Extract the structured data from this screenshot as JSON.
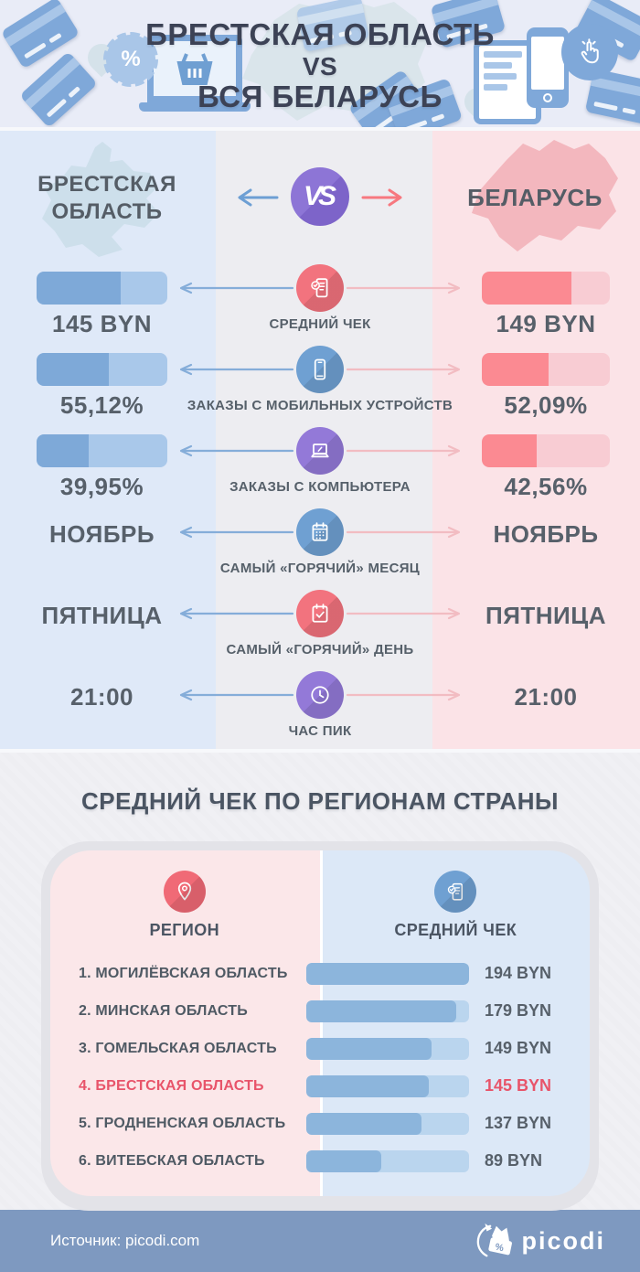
{
  "header": {
    "title_lines": [
      "БРЕСТСКАЯ ОБЛАСТЬ",
      "VS",
      "ВСЯ БЕЛАРУСЬ"
    ]
  },
  "compare": {
    "left_region_label": "БРЕСТСКАЯ ОБЛАСТЬ",
    "right_region_label": "БЕЛАРУСЬ",
    "vs_label": "VS",
    "rows": [
      {
        "label": "СРЕДНИЙ ЧЕК",
        "icon": "receipt-check-icon",
        "accent": "#f2737e",
        "left_value": "145 BYN",
        "left_fill_pct": 64,
        "right_value": "149 BYN",
        "right_fill_pct": 70
      },
      {
        "label": "ЗАКАЗЫ С МОБИЛЬНЫХ УСТРОЙСТВ",
        "icon": "smartphone-icon",
        "accent": "#6fa0d2",
        "left_value": "55,12%",
        "left_fill_pct": 55,
        "right_value": "52,09%",
        "right_fill_pct": 52
      },
      {
        "label": "ЗАКАЗЫ С КОМПЬЮТЕРА",
        "icon": "laptop-icon",
        "accent": "#9379d8",
        "left_value": "39,95%",
        "left_fill_pct": 40,
        "right_value": "42,56%",
        "right_fill_pct": 43
      },
      {
        "label": "САМЫЙ «ГОРЯЧИЙ» МЕСЯЦ",
        "icon": "calendar-icon",
        "accent": "#6fa0d2",
        "left_value": "НОЯБРЬ",
        "right_value": "НОЯБРЬ"
      },
      {
        "label": "САМЫЙ «ГОРЯЧИЙ» ДЕНЬ",
        "icon": "calendar-check-icon",
        "accent": "#f2737e",
        "left_value": "ПЯТНИЦА",
        "right_value": "ПЯТНИЦА"
      },
      {
        "label": "ЧАС ПИК",
        "icon": "clock-icon",
        "accent": "#9379d8",
        "left_value": "21:00",
        "right_value": "21:00"
      }
    ]
  },
  "regions_section": {
    "title": "СРЕДНИЙ ЧЕК ПО РЕГИОНАМ СТРАНЫ",
    "col_region_label": "РЕГИОН",
    "col_value_label": "СРЕДНИЙ ЧЕК",
    "rows": [
      {
        "name": "1. МОГИЛЁВСКАЯ ОБЛАСТЬ",
        "value": "194 BYN",
        "fill_pct": 100,
        "highlight": false
      },
      {
        "name": "2. МИНСКАЯ ОБЛАСТЬ",
        "value": "179 BYN",
        "fill_pct": 92,
        "highlight": false
      },
      {
        "name": "3. ГОМЕЛЬСКАЯ ОБЛАСТЬ",
        "value": "149 BYN",
        "fill_pct": 77,
        "highlight": false
      },
      {
        "name": "4. БРЕСТСКАЯ ОБЛАСТЬ",
        "value": "145 BYN",
        "fill_pct": 75,
        "highlight": true
      },
      {
        "name": "5. ГРОДНЕНСКАЯ ОБЛАСТЬ",
        "value": "137 BYN",
        "fill_pct": 71,
        "highlight": false
      },
      {
        "name": "6. ВИТЕБСКАЯ ОБЛАСТЬ",
        "value": "89 BYN",
        "fill_pct": 46,
        "highlight": false
      }
    ]
  },
  "footer": {
    "source_text": "Источник: picodi.com",
    "brand": "picodi"
  },
  "colors": {
    "blue_accent": "#6fa0d2",
    "red_accent": "#f2737e",
    "purple_accent": "#8d75d6",
    "blue_bar_fill": "#7ea9d8",
    "blue_bar_track": "#a9c8ea",
    "pink_bar_fill": "#fb8a92",
    "pink_bar_track": "#f8ccd3",
    "region_bar_fill": "#8cb5dc",
    "region_bar_track": "#bad5ee",
    "highlight_red": "#e8546a",
    "footer_bg": "#7e99c0",
    "left_col_bg": "#dfe9f8",
    "mid_col_bg": "#ededf1",
    "right_col_bg": "#fbe3e7"
  },
  "chart_data": [
    {
      "type": "bar",
      "title": "Брестская область vs Вся Беларусь",
      "categories": [
        "Средний чек",
        "Заказы с мобильных устройств",
        "Заказы с компьютера",
        "Самый «горячий» месяц",
        "Самый «горячий» день",
        "Час пик"
      ],
      "series": [
        {
          "name": "Брестская область",
          "values": [
            "145 BYN",
            "55,12%",
            "39,95%",
            "НОЯБРЬ",
            "ПЯТНИЦА",
            "21:00"
          ]
        },
        {
          "name": "Беларусь",
          "values": [
            "149 BYN",
            "52,09%",
            "42,56%",
            "НОЯБРЬ",
            "ПЯТНИЦА",
            "21:00"
          ]
        }
      ],
      "legend_position": "columns-left-right"
    },
    {
      "type": "bar",
      "title": "Средний чек по регионам страны",
      "categories": [
        "Могилёвская область",
        "Минская область",
        "Гомельская область",
        "Брестская область",
        "Гродненская область",
        "Витебская область"
      ],
      "values": [
        194,
        179,
        149,
        145,
        137,
        89
      ],
      "unit": "BYN",
      "xlim": [
        0,
        194
      ],
      "highlighted_category": "Брестская область"
    }
  ]
}
